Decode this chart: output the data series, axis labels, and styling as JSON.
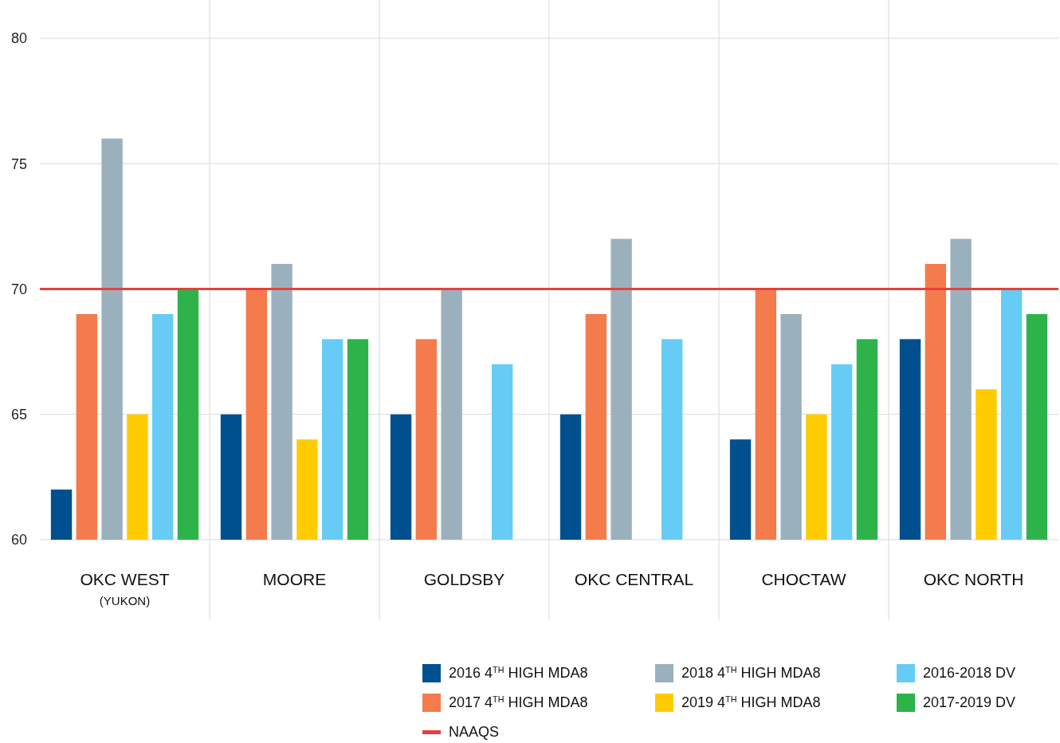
{
  "chart_data": {
    "type": "bar",
    "categories": [
      "OKC WEST\n(YUKON)",
      "MOORE",
      "GOLDSBY",
      "OKC CENTRAL",
      "CHOCTAW",
      "OKC NORTH"
    ],
    "series": [
      {
        "name": "2016 4$^{TH}$ HIGH MDA8",
        "color": "#00508f",
        "values": [
          62,
          65,
          65,
          65,
          64,
          68
        ]
      },
      {
        "name": "2017 4$^{TH}$ HIGH MDA8",
        "color": "#f47b4c",
        "values": [
          69,
          70,
          68,
          69,
          70,
          71
        ]
      },
      {
        "name": "2018 4$^{TH}$ HIGH MDA8",
        "color": "#9ab1bd",
        "values": [
          76,
          71,
          70,
          72,
          69,
          72
        ]
      },
      {
        "name": "2019 4$^{TH}$ HIGH MDA8",
        "color": "#ffcc00",
        "values": [
          65,
          64,
          null,
          null,
          65,
          66
        ]
      },
      {
        "name": "2016-2018 DV",
        "color": "#66ccf5",
        "values": [
          69,
          68,
          67,
          68,
          67,
          70
        ]
      },
      {
        "name": "2017-2019 DV",
        "color": "#2db34a",
        "values": [
          70,
          68,
          null,
          null,
          68,
          69
        ]
      }
    ],
    "ylim": [
      60,
      80
    ],
    "yticks": [
      60,
      65,
      70,
      75,
      80
    ],
    "grid": "y",
    "legend": "bottom",
    "ref_lines": [
      {
        "axis": "y",
        "value": 70,
        "label": "NAAQS",
        "color": "#e8403a"
      }
    ]
  }
}
